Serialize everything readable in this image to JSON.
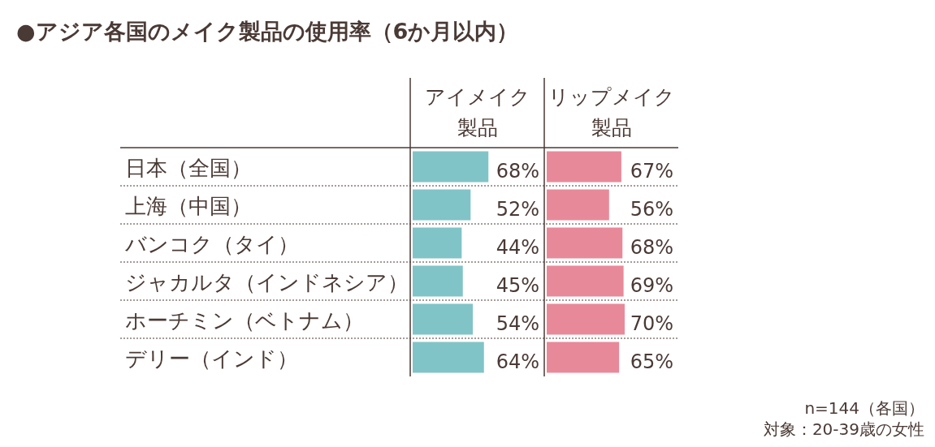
{
  "chart_data": [
    {
      "type": "other",
      "title": "●アジア各国のメイク製品の使用率（6か月以内）",
      "annotations": [
        "n=144（各国）",
        "対象：20-39歳の女性"
      ]
    },
    {
      "type": "bar",
      "orientation": "horizontal",
      "title": "アイメイク製品",
      "categories": [
        "日本（全国）",
        "上海（中国）",
        "バンコク（タイ）",
        "ジャカルタ（インドネシア）",
        "ホーチミン（ベトナム）",
        "デリー（インド）"
      ],
      "color": "#80c4c8",
      "values": [
        68,
        52,
        44,
        45,
        54,
        64
      ],
      "value_labels": [
        "68%",
        "52%",
        "44%",
        "45%",
        "54%",
        "64%"
      ]
    },
    {
      "type": "bar",
      "orientation": "horizontal",
      "title": "リップメイク製品",
      "categories": [
        null,
        null,
        null,
        null,
        null,
        null
      ],
      "color": "#e8899a",
      "values": [
        67,
        56,
        68,
        69,
        70,
        65
      ],
      "value_labels": [
        "67%",
        "56%",
        "68%",
        "69%",
        "70%",
        "65%"
      ]
    }
  ]
}
